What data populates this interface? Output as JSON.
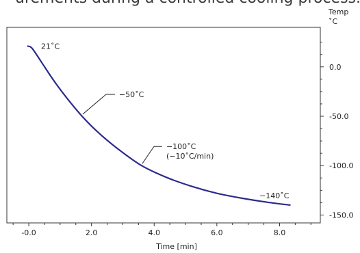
{
  "caption": "urements during a controlled cooling process.",
  "chart_data": {
    "type": "line",
    "title": "",
    "xlabel": "Time [min]",
    "ylabel_top": "Temp",
    "ylabel_unit": "˚C",
    "xlim": [
      -0.7,
      9.3
    ],
    "ylim": [
      -158,
      40
    ],
    "x_ticks": [
      "-0.0",
      "2.0",
      "4.0",
      "6.0",
      "8.0"
    ],
    "x_tick_values": [
      0,
      2,
      4,
      6,
      8
    ],
    "y_ticks": [
      "0.0",
      "-50.0",
      "-100.0",
      "-150.0"
    ],
    "y_tick_values": [
      0,
      -50,
      -100,
      -150
    ],
    "series": [
      {
        "color": "#2b2b8c",
        "x": [
          -0.05,
          0.1,
          0.4,
          0.8,
          1.2,
          1.7,
          2.2,
          2.8,
          3.6,
          4.4,
          5.2,
          6.0,
          6.8,
          7.6,
          8.35
        ],
        "y": [
          21,
          19,
          5,
          -14,
          -31,
          -50,
          -66,
          -82,
          -100,
          -112,
          -121,
          -128,
          -133,
          -137,
          -140
        ]
      }
    ],
    "annotations": [
      {
        "text": "21˚C",
        "x": 0.45,
        "y": 23
      },
      {
        "text": "−50˚C",
        "x": 1.7,
        "y": -50
      },
      {
        "text": "−100˚C",
        "x": 3.6,
        "y": -100
      },
      {
        "text": "(−10˚C/min)",
        "x": 3.6,
        "y": -100
      },
      {
        "text": "−140˚C",
        "x": 8.35,
        "y": -140
      }
    ]
  }
}
